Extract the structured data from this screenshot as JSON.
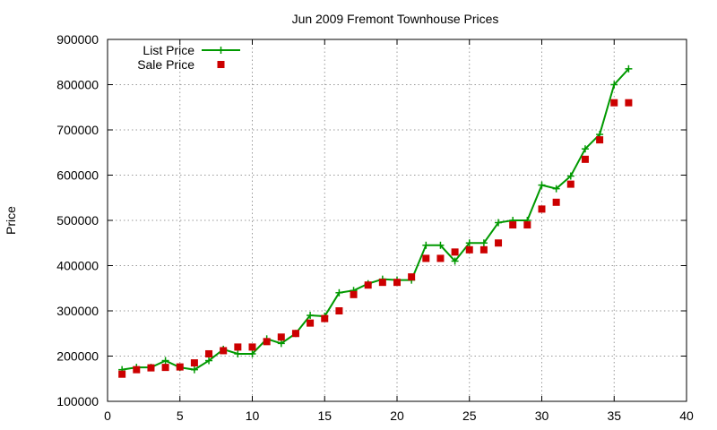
{
  "chart_data": {
    "type": "line",
    "title": "Jun 2009 Fremont Townhouse Prices",
    "xlabel": "",
    "ylabel": "Price",
    "xlim": [
      0,
      40
    ],
    "ylim": [
      100000,
      900000
    ],
    "x_ticks": [
      0,
      5,
      10,
      15,
      20,
      25,
      30,
      35,
      40
    ],
    "y_ticks": [
      100000,
      200000,
      300000,
      400000,
      500000,
      600000,
      700000,
      800000,
      900000
    ],
    "grid": true,
    "legend_position": "top-left",
    "series": [
      {
        "name": "List Price",
        "style": "line-plus",
        "color": "#009900",
        "x": [
          1,
          2,
          3,
          4,
          5,
          6,
          7,
          8,
          9,
          10,
          11,
          12,
          13,
          14,
          15,
          16,
          17,
          18,
          19,
          20,
          21,
          22,
          23,
          24,
          25,
          26,
          27,
          28,
          29,
          30,
          31,
          32,
          33,
          34,
          35,
          36
        ],
        "y": [
          170000,
          175000,
          175000,
          190000,
          175000,
          170000,
          190000,
          215000,
          205000,
          205000,
          238000,
          228000,
          250000,
          290000,
          288000,
          340000,
          345000,
          360000,
          370000,
          368000,
          368000,
          445000,
          445000,
          410000,
          450000,
          450000,
          495000,
          500000,
          500000,
          578000,
          570000,
          598000,
          658000,
          690000,
          800000,
          835000
        ]
      },
      {
        "name": "Sale Price",
        "style": "square",
        "color": "#cc0000",
        "x": [
          1,
          2,
          3,
          4,
          5,
          6,
          7,
          8,
          9,
          10,
          11,
          12,
          13,
          14,
          15,
          16,
          17,
          18,
          19,
          20,
          21,
          22,
          23,
          24,
          25,
          26,
          27,
          28,
          29,
          30,
          31,
          32,
          33,
          34,
          35,
          36
        ],
        "y": [
          160000,
          170000,
          174000,
          175000,
          176000,
          185000,
          205000,
          212000,
          220000,
          220000,
          232000,
          242000,
          250000,
          273000,
          283000,
          300000,
          336000,
          357000,
          363000,
          363000,
          375000,
          416000,
          416000,
          430000,
          435000,
          435000,
          450000,
          490000,
          490000,
          525000,
          540000,
          580000,
          635000,
          678000,
          760000,
          760000
        ]
      }
    ]
  }
}
